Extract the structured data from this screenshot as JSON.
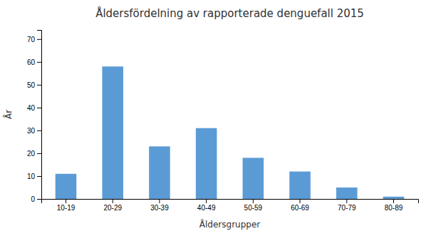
{
  "chart_data": {
    "type": "bar",
    "title": "Åldersfördelning av rapporterade denguefall 2015",
    "categories": [
      "10-19",
      "20-29",
      "30-39",
      "40-49",
      "50-59",
      "60-69",
      "70-79",
      "80-89"
    ],
    "values": [
      11,
      58,
      23,
      31,
      18,
      12,
      5,
      1
    ],
    "color": "#5b9bd5",
    "xlabel": "Åldersgrupper",
    "ylabel": "År",
    "ylim": [
      0,
      74
    ],
    "yticks": [
      0,
      10,
      20,
      30,
      40,
      50,
      60,
      70
    ],
    "grid": false
  }
}
